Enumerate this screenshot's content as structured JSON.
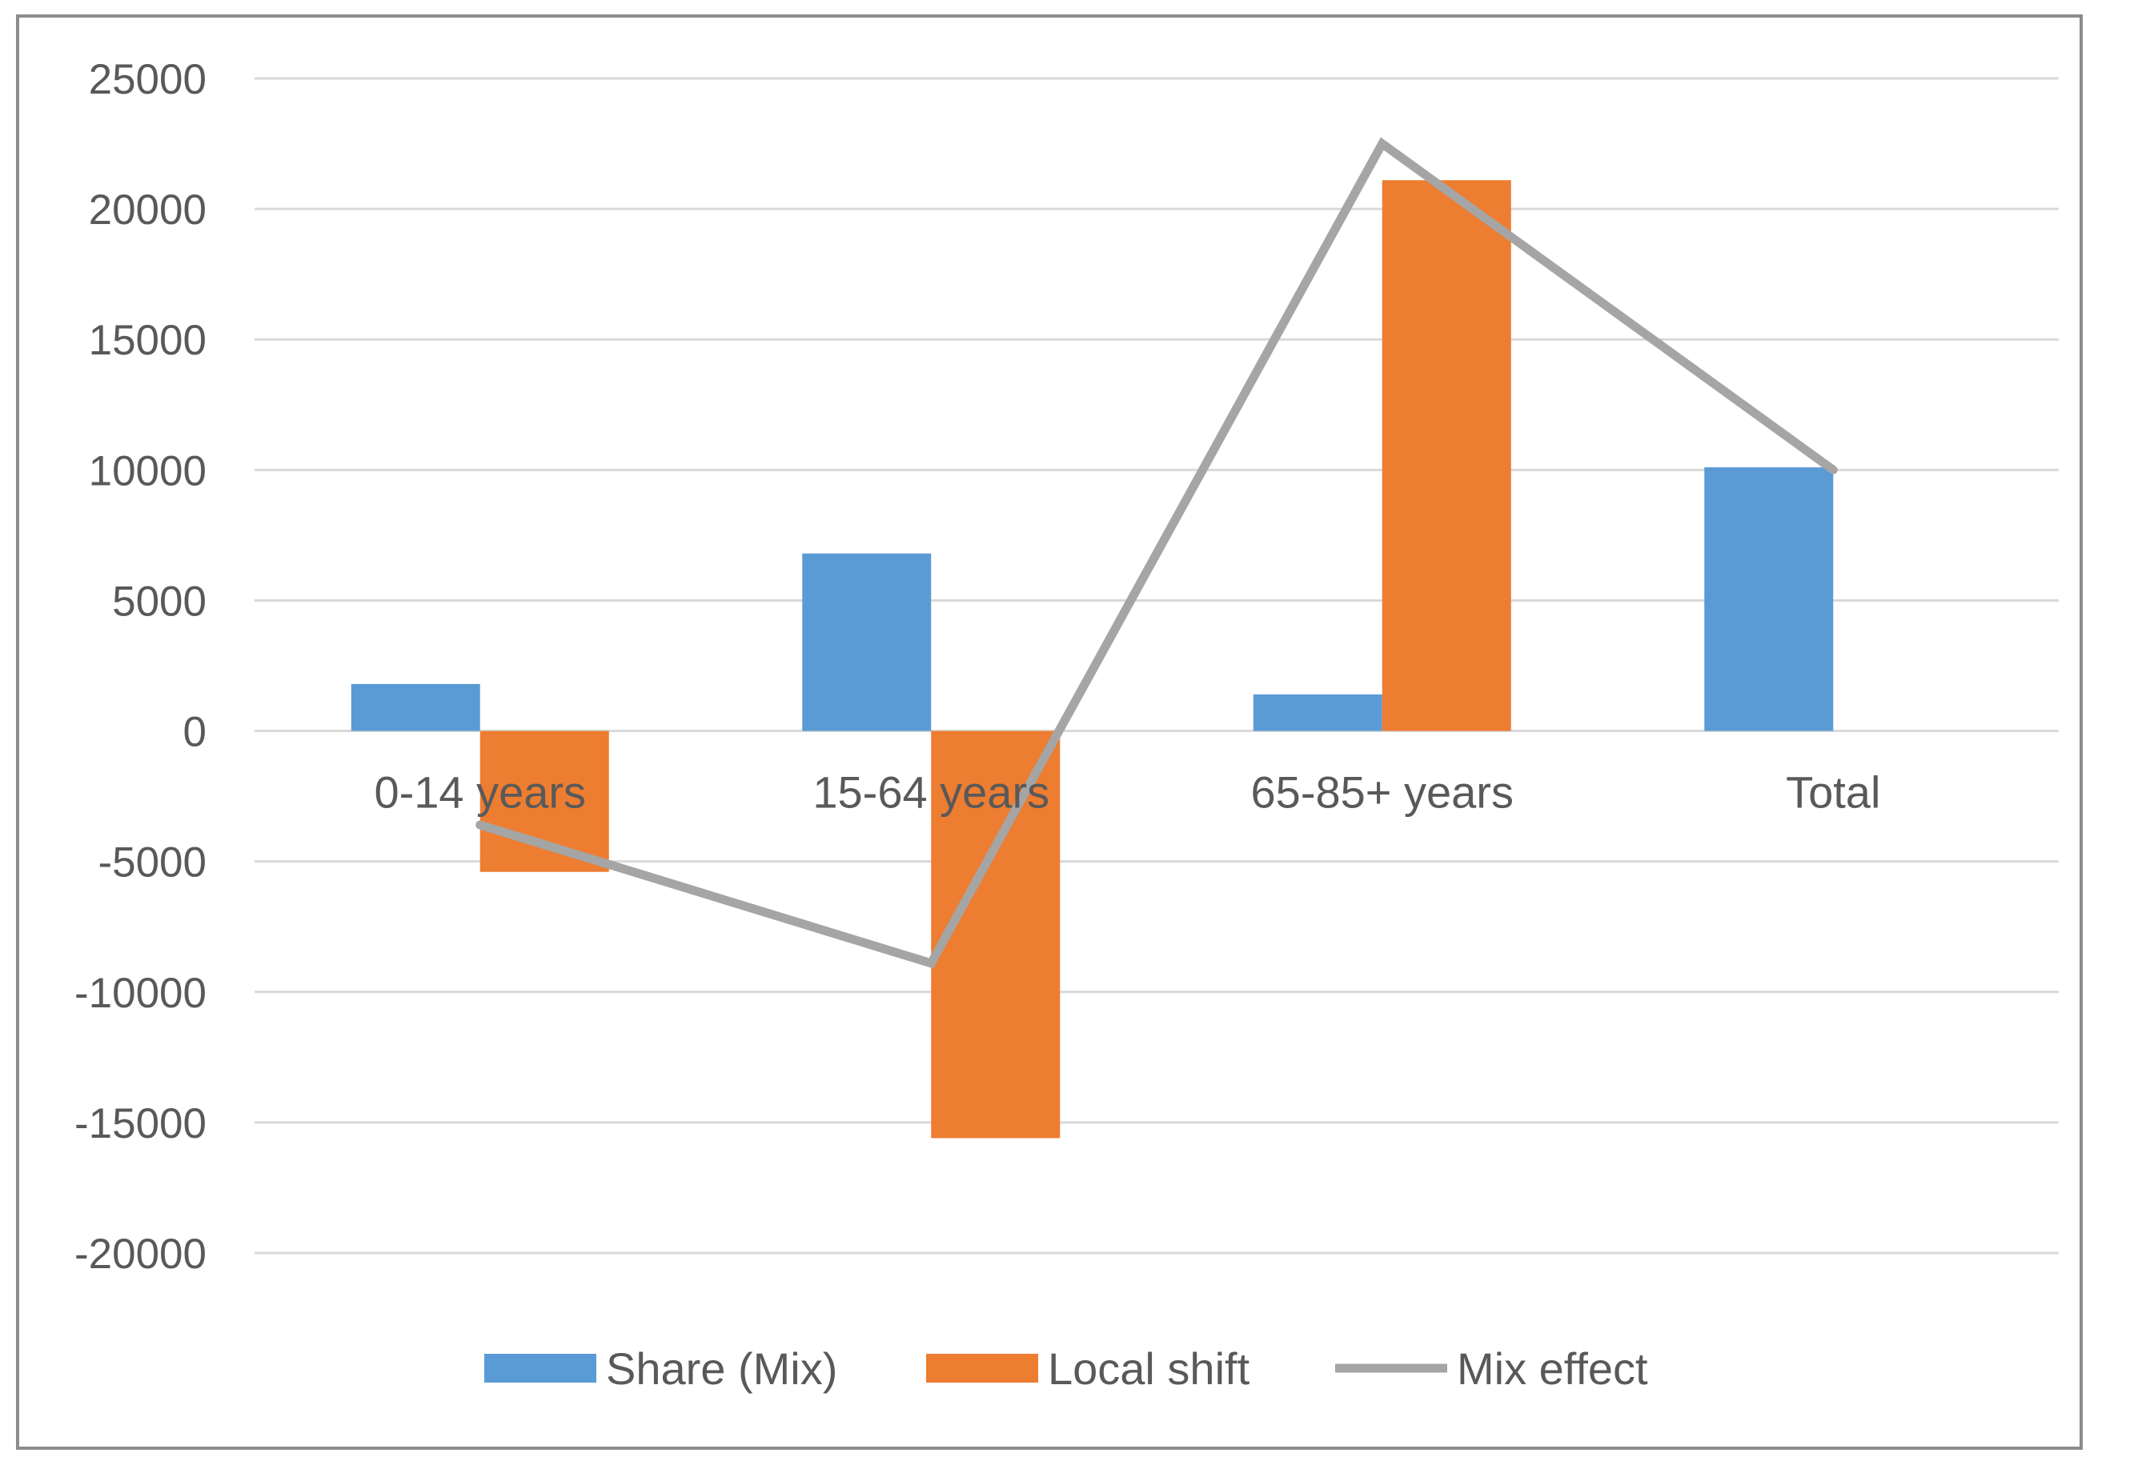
{
  "chart_data": {
    "type": "bar",
    "title": "",
    "xlabel": "",
    "ylabel": "",
    "categories": [
      "0-14 years",
      "15-64 years",
      "65-85+ years",
      "Total"
    ],
    "ylim": [
      -20000,
      25000
    ],
    "yticks": [
      25000,
      20000,
      15000,
      10000,
      5000,
      0,
      -5000,
      -10000,
      -15000,
      -20000
    ],
    "grid": true,
    "legend_position": "bottom",
    "series": [
      {
        "name": "Share (Mix)",
        "type": "bar",
        "color": "#5b9bd5",
        "values": [
          1800,
          6800,
          1400,
          10100
        ]
      },
      {
        "name": "Local shift",
        "type": "bar",
        "color": "#ed7d31",
        "values": [
          -5400,
          -15600,
          21100,
          0
        ]
      },
      {
        "name": "Mix effect",
        "type": "line",
        "color": "#a5a5a5",
        "values": [
          -3600,
          -8900,
          22500,
          10000
        ]
      }
    ]
  }
}
